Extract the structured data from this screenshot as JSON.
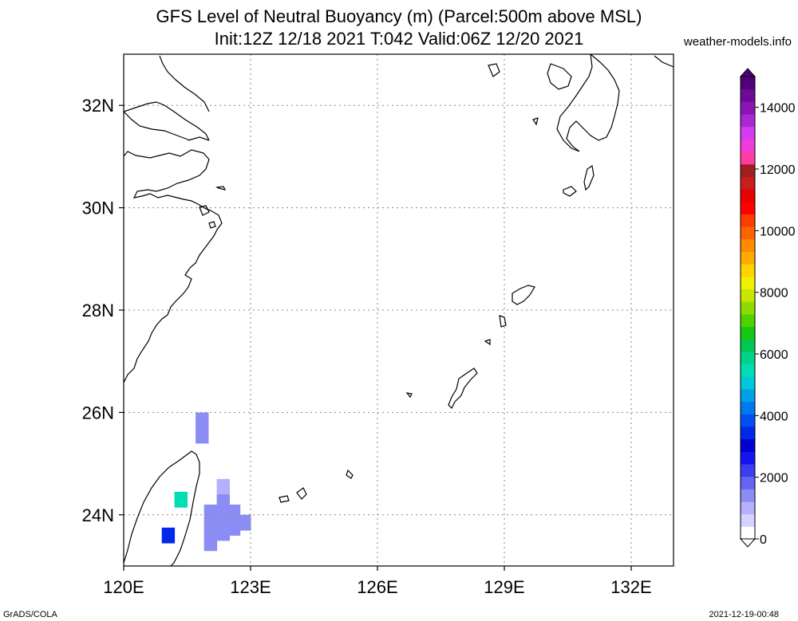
{
  "header": {
    "title_line1": "GFS Level of Neutral Buoyancy (m) (Parcel:500m above MSL)",
    "title_line2": "Init:12Z 12/18 2021 T:042 Valid:06Z 12/20 2021",
    "site": "weather-models.info"
  },
  "footer": {
    "left": "GrADS/COLA",
    "right": "2021-12-19-00:48"
  },
  "map": {
    "lon_range": [
      120,
      133
    ],
    "lat_range": [
      23,
      33
    ],
    "lon_ticks": [
      120,
      123,
      126,
      129,
      132
    ],
    "lat_ticks": [
      24,
      26,
      28,
      30,
      32
    ],
    "lon_labels": [
      "120E",
      "123E",
      "126E",
      "129E",
      "132E"
    ],
    "lat_labels": [
      "24N",
      "26N",
      "28N",
      "30N",
      "32N"
    ],
    "grid": "dotted"
  },
  "colorbar": {
    "labels": [
      "0",
      "2000",
      "4000",
      "6000",
      "8000",
      "10000",
      "12000",
      "14000"
    ],
    "range": [
      0,
      15000
    ],
    "colors": [
      "#ffffff",
      "#d6d2ff",
      "#b4b0fa",
      "#8c8cf5",
      "#6464f0",
      "#3c3cf0",
      "#1414f0",
      "#0000d2",
      "#0028e6",
      "#0050f0",
      "#0078f0",
      "#00a0e6",
      "#00c8dc",
      "#00dcb4",
      "#00d28c",
      "#00c850",
      "#14c814",
      "#50d200",
      "#8cdc00",
      "#c8e600",
      "#f0f000",
      "#ffd200",
      "#ffaa00",
      "#ff8c00",
      "#ff6400",
      "#ff3c00",
      "#ff0000",
      "#e60000",
      "#c81e1e",
      "#a01e1e",
      "#ff3ca0",
      "#f03cdc",
      "#d23cf0",
      "#aa28d2",
      "#8c14b4",
      "#6e0a96",
      "#500078"
    ]
  },
  "precip_cells": [
    {
      "lon": 121.85,
      "lat": 25.55,
      "value": 1500
    },
    {
      "lon": 121.85,
      "lat": 25.85,
      "value": 1600
    },
    {
      "lon": 122.35,
      "lat": 24.55,
      "value": 1200
    },
    {
      "lon": 122.35,
      "lat": 24.25,
      "value": 1300
    },
    {
      "lon": 122.35,
      "lat": 23.95,
      "value": 1300
    },
    {
      "lon": 122.35,
      "lat": 23.65,
      "value": 1300
    },
    {
      "lon": 122.05,
      "lat": 24.05,
      "value": 1300
    },
    {
      "lon": 122.05,
      "lat": 23.75,
      "value": 1300
    },
    {
      "lon": 122.05,
      "lat": 23.45,
      "value": 1300
    },
    {
      "lon": 122.6,
      "lat": 24.05,
      "value": 1300
    },
    {
      "lon": 122.6,
      "lat": 23.75,
      "value": 1300
    },
    {
      "lon": 122.85,
      "lat": 23.85,
      "value": 1300
    },
    {
      "lon": 121.35,
      "lat": 24.3,
      "value": 5500
    },
    {
      "lon": 121.05,
      "lat": 23.6,
      "value": 3500
    }
  ]
}
